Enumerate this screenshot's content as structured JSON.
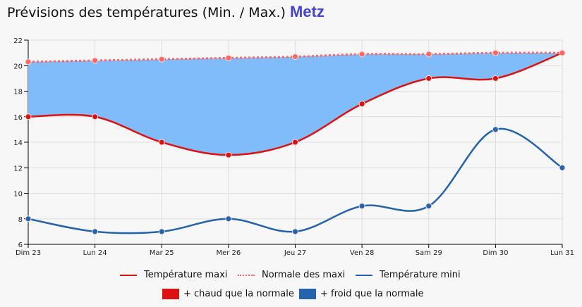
{
  "header": {
    "title": "Prévisions des températures (Min. / Max.)",
    "city": "Metz"
  },
  "chart_data": {
    "type": "line",
    "categories": [
      "Dim 23",
      "Lun 24",
      "Mar 25",
      "Mer 26",
      "Jeu 27",
      "Ven 28",
      "Sam 29",
      "Dim 30",
      "Lun 31"
    ],
    "ylim": [
      6,
      22
    ],
    "yticks": [
      6,
      8,
      10,
      12,
      14,
      16,
      18,
      20,
      22
    ],
    "grid": true,
    "legend_position": "bottom",
    "series": [
      {
        "name": "Température maxi",
        "values": [
          16,
          16,
          14,
          13,
          14,
          17,
          19,
          19,
          21
        ],
        "color": "#dd1111",
        "style": "solid"
      },
      {
        "name": "Normale des maxi",
        "values": [
          20.3,
          20.4,
          20.5,
          20.6,
          20.7,
          20.9,
          20.9,
          21.0,
          21.0
        ],
        "color": "#ff6666",
        "style": "dotted"
      },
      {
        "name": "Température mini",
        "values": [
          8,
          7,
          7,
          8,
          7,
          9,
          9,
          15,
          12
        ],
        "color": "#2563aa",
        "style": "solid"
      }
    ],
    "area_legend": [
      {
        "label": "+ chaud que la normale",
        "color": "#dd1111"
      },
      {
        "label": "+ froid que la normale",
        "color": "#2563aa"
      }
    ],
    "cold_fill_color": "#80bcfa"
  }
}
